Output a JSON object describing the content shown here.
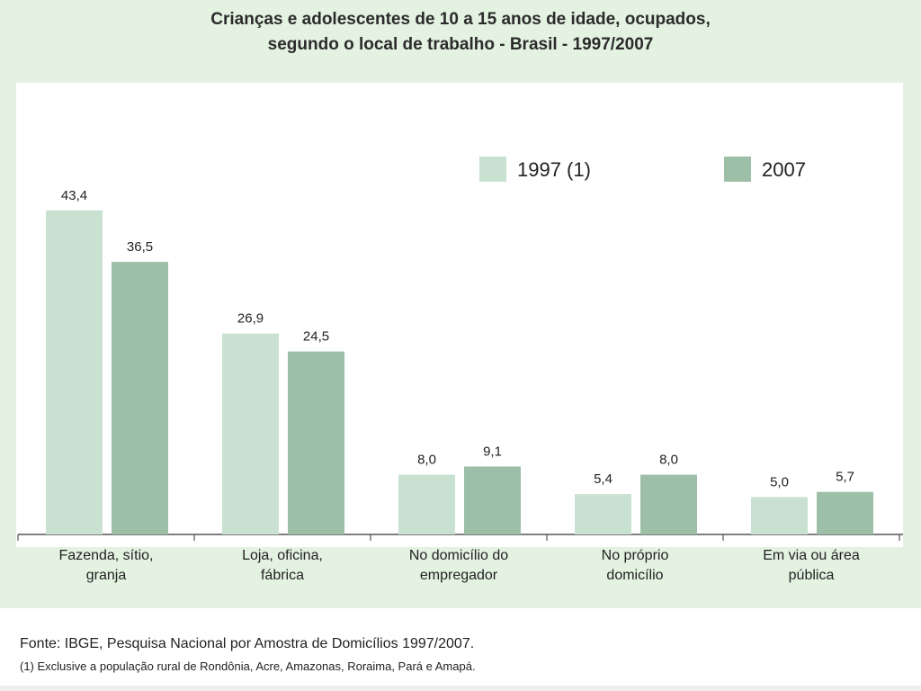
{
  "chart_data": {
    "type": "bar",
    "title": "Crianças e adolescentes de 10 a 15 anos de idade, ocupados,",
    "subtitle": "segundo o local de trabalho - Brasil - 1997/2007",
    "categories": [
      [
        "Fazenda, sítio,",
        "granja"
      ],
      [
        "Loja, oficina,",
        "fábrica"
      ],
      [
        "No domicílio do",
        "empregador"
      ],
      [
        "No próprio",
        "domicílio"
      ],
      [
        "Em via ou área",
        "pública"
      ]
    ],
    "series": [
      {
        "name": "1997 (1)",
        "values": [
          43.4,
          26.9,
          8.0,
          5.4,
          5.0
        ],
        "labels": [
          "43,4",
          "26,9",
          "8,0",
          "5,4",
          "5,0"
        ],
        "color": "#c9e1d1"
      },
      {
        "name": "2007",
        "values": [
          36.5,
          24.5,
          9.1,
          8.0,
          5.7
        ],
        "labels": [
          "36,5",
          "24,5",
          "9,1",
          "8,0",
          "5,7"
        ],
        "color": "#9dbfa7"
      }
    ],
    "ylim": [
      0,
      48
    ],
    "legend_position": "top-right",
    "grid": false
  },
  "footer": {
    "source": "Fonte: IBGE,  Pesquisa Nacional por Amostra de Domicílios 1997/2007.",
    "note": "(1) Exclusive a população rural de Rondônia, Acre, Amazonas, Roraima, Pará e Amapá."
  },
  "colors": {
    "background": "#e3f2e1",
    "plot_area": "#ffffff",
    "axis": "#555555"
  }
}
